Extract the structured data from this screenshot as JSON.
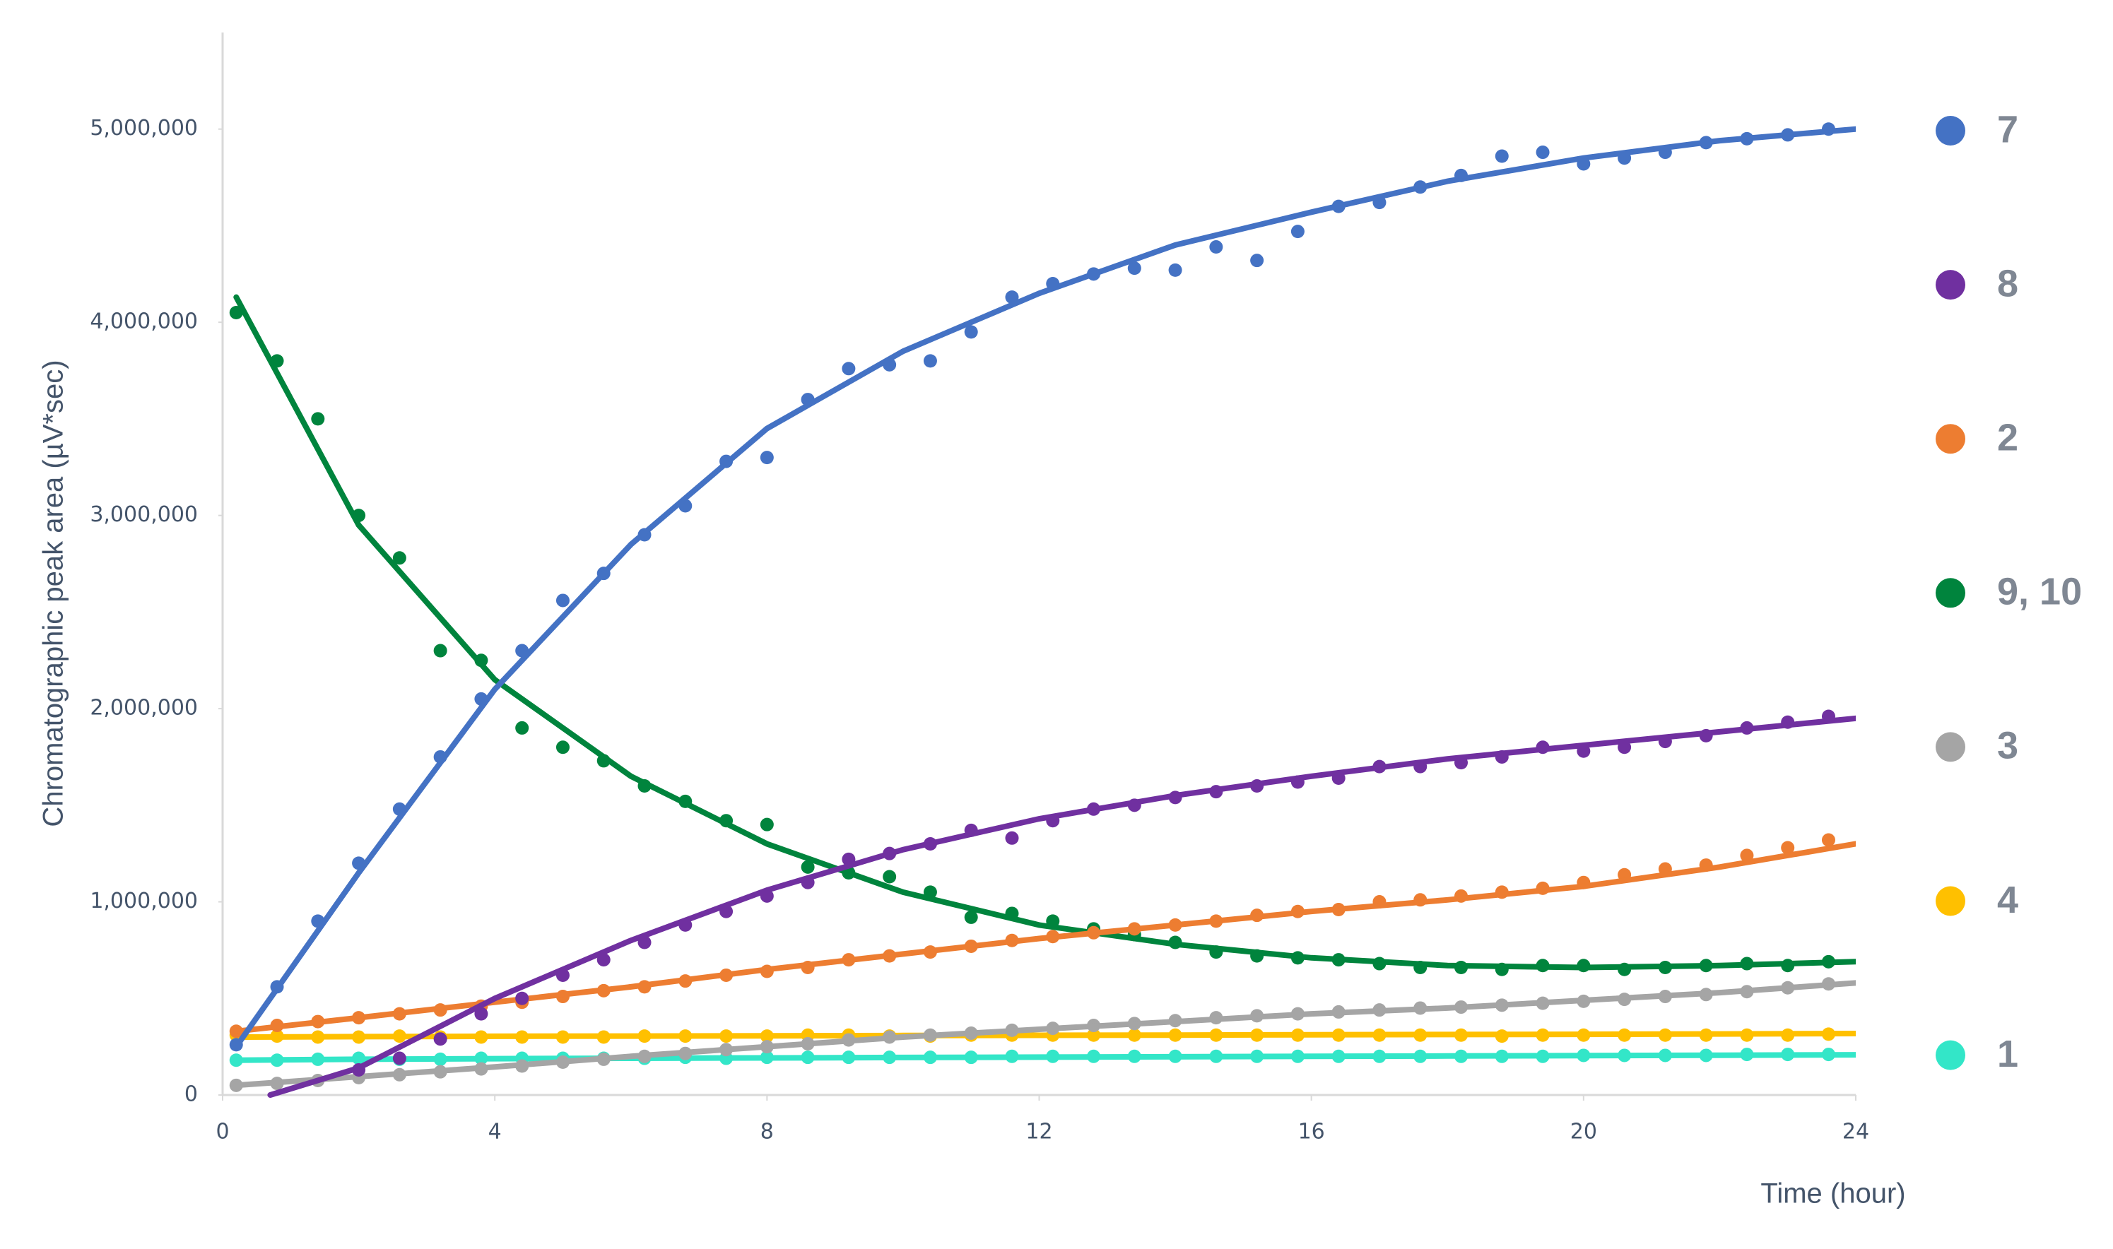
{
  "chart_data": {
    "type": "scatter",
    "y_label": "Chromatographic peak area (µV*sec)",
    "x_label": "Time (hour)",
    "xlim": [
      0,
      24
    ],
    "xticks": [
      0,
      4,
      8,
      12,
      16,
      20,
      24
    ],
    "ylim": [
      0,
      5500000
    ],
    "yticks": [
      0,
      {
        "value": 1000000,
        "label": "1,000,000"
      },
      {
        "value": 2000000,
        "label": "2,000,000"
      },
      {
        "value": 3000000,
        "label": "3,000,000"
      },
      {
        "value": 4000000,
        "label": "4,000,000"
      },
      {
        "value": 5000000,
        "label": "5,000,000"
      }
    ],
    "grid": false,
    "legend": "right",
    "x": [
      0.2,
      0.8,
      1.4,
      2,
      2.6,
      3.2,
      3.8,
      4.4,
      5,
      5.6,
      6.2,
      6.8,
      7.4,
      8,
      8.6,
      9.2,
      9.8,
      10.4,
      11,
      11.6,
      12.2,
      12.8,
      13.4,
      14,
      14.6,
      15.2,
      15.8,
      16.4,
      17,
      17.6,
      18.2,
      18.8,
      19.4,
      20,
      20.6,
      21.2,
      21.8,
      22.4,
      23,
      23.6
    ],
    "series": [
      {
        "name": "7",
        "color": "#4472c4",
        "values": [
          260000,
          560000,
          900000,
          1200000,
          1480000,
          1750000,
          2050000,
          2300000,
          2560000,
          2700000,
          2900000,
          3050000,
          3280000,
          3300000,
          3600000,
          3760000,
          3780000,
          3800000,
          3950000,
          4130000,
          4200000,
          4250000,
          4280000,
          4270000,
          4390000,
          4320000,
          4470000,
          4600000,
          4620000,
          4700000,
          4760000,
          4860000,
          4880000,
          4820000,
          4850000,
          4880000,
          4930000,
          4950000,
          4970000,
          5000000
        ],
        "trend_x": [
          0.2,
          2,
          4,
          6,
          8,
          10,
          12,
          14,
          16,
          18,
          20,
          22,
          24
        ],
        "trend": [
          250000,
          1150000,
          2100000,
          2850000,
          3450000,
          3850000,
          4150000,
          4400000,
          4570000,
          4730000,
          4850000,
          4940000,
          5000000
        ]
      },
      {
        "name": "8",
        "color": "#7030a0",
        "values": [
          null,
          null,
          null,
          130000,
          190000,
          290000,
          420000,
          500000,
          620000,
          700000,
          790000,
          880000,
          950000,
          1030000,
          1100000,
          1220000,
          1250000,
          1300000,
          1370000,
          1330000,
          1420000,
          1480000,
          1500000,
          1540000,
          1570000,
          1600000,
          1620000,
          1640000,
          1700000,
          1700000,
          1720000,
          1750000,
          1800000,
          1780000,
          1800000,
          1830000,
          1860000,
          1900000,
          1930000,
          1960000
        ],
        "trend_x": [
          0.7,
          2,
          4,
          6,
          8,
          10,
          12,
          14,
          16,
          18,
          20,
          22,
          24
        ],
        "trend": [
          0,
          140000,
          500000,
          800000,
          1060000,
          1270000,
          1430000,
          1550000,
          1650000,
          1740000,
          1810000,
          1880000,
          1950000
        ]
      },
      {
        "name": "2",
        "color": "#ed7d31",
        "values": [
          330000,
          360000,
          380000,
          400000,
          420000,
          440000,
          460000,
          480000,
          510000,
          540000,
          560000,
          590000,
          620000,
          640000,
          660000,
          700000,
          720000,
          740000,
          770000,
          800000,
          820000,
          840000,
          860000,
          880000,
          900000,
          930000,
          950000,
          960000,
          1000000,
          1010000,
          1030000,
          1050000,
          1070000,
          1100000,
          1140000,
          1170000,
          1190000,
          1240000,
          1280000,
          1320000
        ],
        "trend_x": [
          0.2,
          2,
          4,
          6,
          8,
          10,
          12,
          14,
          16,
          18,
          20,
          22,
          24
        ],
        "trend": [
          330000,
          400000,
          480000,
          560000,
          650000,
          730000,
          810000,
          880000,
          950000,
          1010000,
          1080000,
          1180000,
          1300000
        ]
      },
      {
        "name": "9, 10",
        "color": "#00843d",
        "values": [
          4050000,
          3800000,
          3500000,
          3000000,
          2780000,
          2300000,
          2250000,
          1900000,
          1800000,
          1730000,
          1600000,
          1520000,
          1420000,
          1400000,
          1180000,
          1150000,
          1130000,
          1050000,
          920000,
          940000,
          900000,
          860000,
          830000,
          790000,
          740000,
          720000,
          710000,
          700000,
          680000,
          660000,
          660000,
          650000,
          670000,
          670000,
          650000,
          660000,
          670000,
          680000,
          670000,
          690000
        ],
        "trend_x": [
          0.2,
          2,
          4,
          6,
          8,
          10,
          12,
          14,
          16,
          18,
          20,
          22,
          24
        ],
        "trend": [
          4130000,
          2950000,
          2150000,
          1650000,
          1300000,
          1050000,
          880000,
          780000,
          710000,
          670000,
          660000,
          670000,
          690000
        ]
      },
      {
        "name": "3",
        "color": "#a5a5a5",
        "values": [
          50000,
          60000,
          75000,
          90000,
          105000,
          120000,
          135000,
          150000,
          170000,
          185000,
          200000,
          215000,
          235000,
          250000,
          265000,
          285000,
          300000,
          310000,
          320000,
          335000,
          345000,
          360000,
          370000,
          385000,
          400000,
          410000,
          420000,
          430000,
          440000,
          450000,
          455000,
          465000,
          475000,
          485000,
          495000,
          510000,
          520000,
          535000,
          555000,
          575000
        ],
        "trend_x": [
          0.2,
          2,
          4,
          6,
          8,
          10,
          12,
          14,
          16,
          18,
          20,
          22,
          24
        ],
        "trend": [
          50000,
          95000,
          145000,
          200000,
          250000,
          300000,
          340000,
          380000,
          420000,
          450000,
          490000,
          530000,
          580000
        ]
      },
      {
        "name": "4",
        "color": "#ffc000",
        "values": [
          310000,
          305000,
          300000,
          300000,
          305000,
          300000,
          300000,
          300000,
          300000,
          300000,
          305000,
          305000,
          305000,
          305000,
          310000,
          310000,
          305000,
          305000,
          310000,
          310000,
          310000,
          310000,
          310000,
          310000,
          310000,
          310000,
          310000,
          310000,
          310000,
          310000,
          310000,
          305000,
          310000,
          310000,
          310000,
          310000,
          310000,
          310000,
          310000,
          315000
        ],
        "trend_x": [
          0.2,
          2,
          4,
          6,
          8,
          10,
          12,
          14,
          16,
          18,
          20,
          22,
          24
        ],
        "trend": [
          300000,
          302000,
          304000,
          305000,
          306000,
          308000,
          309000,
          310000,
          312000,
          313000,
          314000,
          316000,
          318000
        ]
      },
      {
        "name": "1",
        "color": "#33e6c8",
        "values": [
          180000,
          180000,
          185000,
          190000,
          185000,
          185000,
          190000,
          190000,
          190000,
          190000,
          190000,
          195000,
          190000,
          195000,
          195000,
          195000,
          195000,
          195000,
          195000,
          200000,
          200000,
          200000,
          200000,
          200000,
          200000,
          200000,
          200000,
          200000,
          200000,
          200000,
          200000,
          200000,
          200000,
          205000,
          205000,
          205000,
          205000,
          210000,
          210000,
          210000
        ],
        "trend_x": [
          0.2,
          2,
          4,
          6,
          8,
          10,
          12,
          14,
          16,
          18,
          20,
          22,
          24
        ],
        "trend": [
          180000,
          185000,
          188000,
          190000,
          192000,
          194000,
          196000,
          198000,
          200000,
          202000,
          204000,
          206000,
          208000
        ]
      }
    ]
  }
}
